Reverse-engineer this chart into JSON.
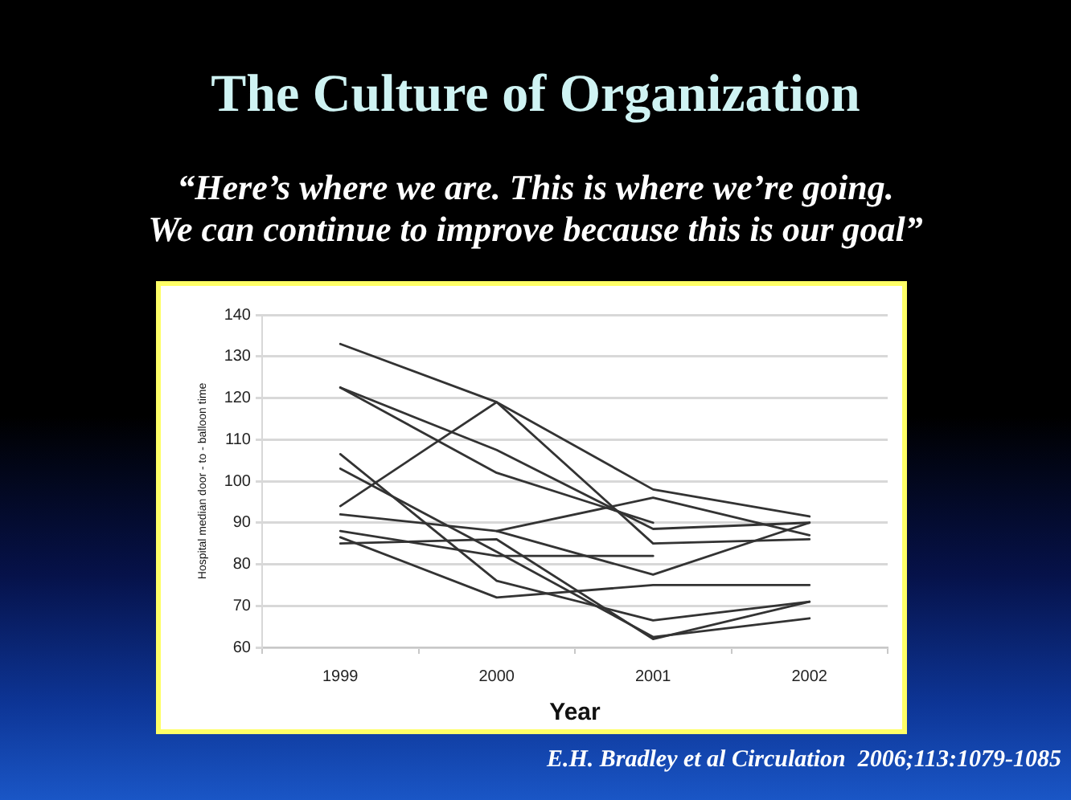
{
  "chart_data": {
    "type": "line",
    "title": "The Culture of Organization",
    "subtitle": "“Here’s where we are. This is where we’re going.\nWe can continue to improve because this is our goal”",
    "xlabel": "Year",
    "ylabel": "Hospital median door - to - balloon time",
    "annotations": [
      "E.H. Bradley et al Circulation  2006;113:1079-1085"
    ],
    "categories": [
      "1999",
      "2000",
      "2001",
      "2002"
    ],
    "series": [
      {
        "color": "#333333",
        "values": [
          133,
          119,
          98,
          91.5
        ]
      },
      {
        "color": "#333333",
        "values": [
          122.5,
          107.5,
          88.5,
          90
        ]
      },
      {
        "color": "#333333",
        "values": [
          122.5,
          102,
          90,
          null
        ]
      },
      {
        "color": "#333333",
        "values": [
          106.5,
          76,
          66.5,
          71
        ]
      },
      {
        "color": "#333333",
        "values": [
          103,
          83,
          62.5,
          67
        ]
      },
      {
        "color": "#333333",
        "values": [
          94,
          119,
          85,
          86
        ]
      },
      {
        "color": "#333333",
        "values": [
          92,
          88,
          96,
          87
        ]
      },
      {
        "color": "#333333",
        "values": [
          null,
          88,
          77.5,
          90
        ]
      },
      {
        "color": "#333333",
        "values": [
          88,
          82,
          82,
          null
        ]
      },
      {
        "color": "#333333",
        "values": [
          86.5,
          72,
          75,
          75
        ]
      },
      {
        "color": "#333333",
        "values": [
          85,
          86,
          62,
          71
        ]
      }
    ],
    "ylim": [
      60,
      140
    ],
    "yticks": [
      60,
      70,
      80,
      90,
      100,
      110,
      120,
      130,
      140
    ],
    "grid": "y",
    "marker": "none",
    "line_style": "solid"
  }
}
